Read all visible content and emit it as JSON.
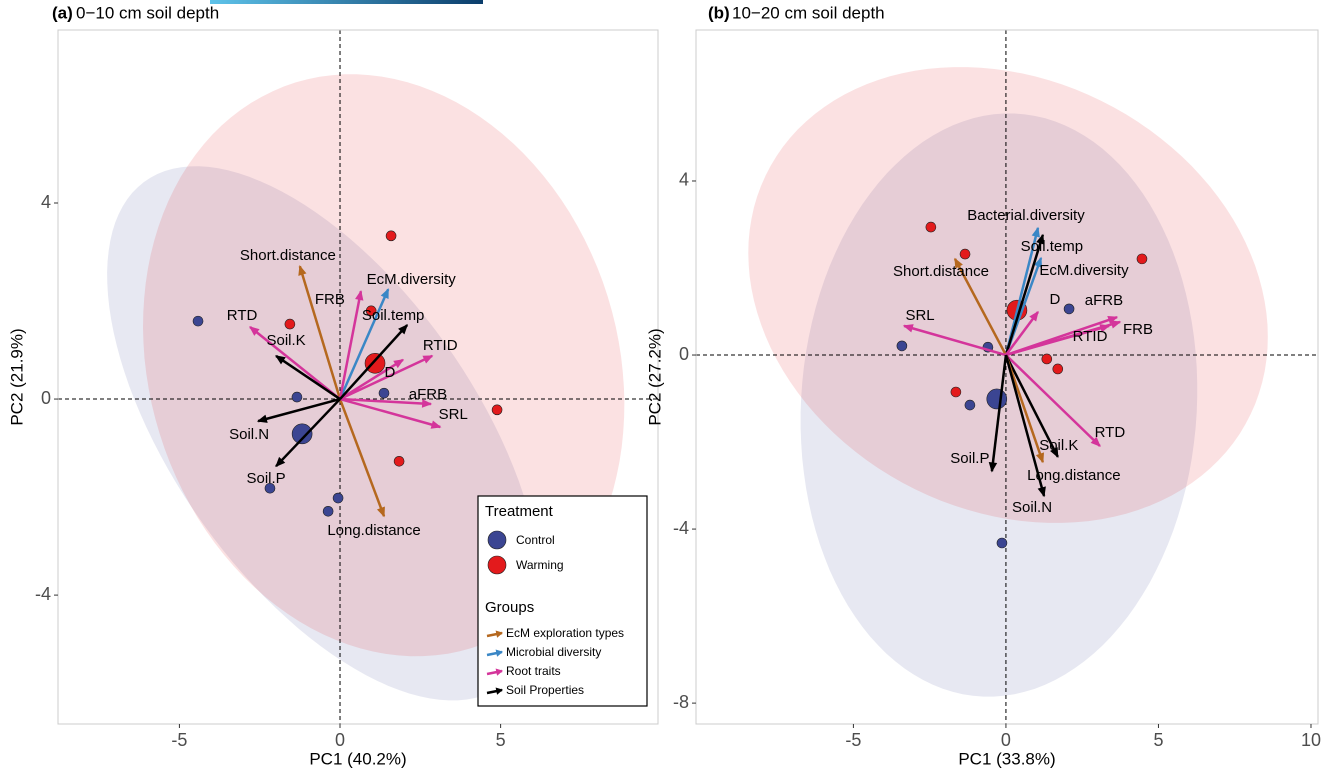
{
  "chart_data": [
    {
      "type": "biplot",
      "label": "(a)",
      "title": "0−10 cm soil depth",
      "xlabel": "PC1 (40.2%)",
      "ylabel": "PC2 (21.9%)",
      "xlim": [
        -8.78,
        9.9
      ],
      "ylim": [
        -6.63,
        7.53
      ],
      "xticks": [
        -5,
        0,
        5
      ],
      "yticks": [
        -4,
        0,
        4
      ],
      "legend_title": "Treatment",
      "groups_title": "Groups",
      "groups": [
        {
          "name": "EcM exploration types",
          "color": "#b5681f"
        },
        {
          "name": "Microbial diversity",
          "color": "#3a87c6"
        },
        {
          "name": "Root traits",
          "color": "#d4359b"
        },
        {
          "name": "Soil Properties",
          "color": "#000000"
        }
      ],
      "series": [
        {
          "name": "Control",
          "color": "#3b4592",
          "x": [
            -4.42,
            -1.34,
            -2.18,
            -0.37,
            -0.06,
            1.37
          ],
          "y": [
            1.59,
            0.04,
            -1.82,
            -2.29,
            -2.02,
            0.12
          ],
          "centroid": [
            -1.18,
            -0.71
          ],
          "ellipse": {
            "cx": -0.5,
            "cy": -0.7,
            "rx": 7.8,
            "ry": 3.8,
            "angle": -35
          }
        },
        {
          "name": "Warming",
          "color": "#e31a1c",
          "x": [
            1.59,
            -1.56,
            0.97,
            4.89,
            1.84
          ],
          "y": [
            3.33,
            1.53,
            1.8,
            -0.22,
            -1.27
          ],
          "centroid": [
            1.09,
            0.73
          ],
          "ellipse": {
            "cx": 1.36,
            "cy": 0.69,
            "rx": 7.6,
            "ry": 5.8,
            "angle": -15
          }
        }
      ],
      "arrows": [
        {
          "label": "Short.distance",
          "group": "EcM exploration types",
          "x": -1.25,
          "y": 2.71
        },
        {
          "label": "Long.distance",
          "group": "EcM exploration types",
          "x": 1.37,
          "y": -2.39
        },
        {
          "label": "EcM.diversity",
          "group": "Microbial diversity",
          "x": 1.5,
          "y": 2.24
        },
        {
          "label": "FRB",
          "group": "Root traits",
          "x": 0.65,
          "y": 2.2
        },
        {
          "label": "RTD",
          "group": "Root traits",
          "x": -2.8,
          "y": 1.47
        },
        {
          "label": "RTID",
          "group": "Root traits",
          "x": 2.87,
          "y": 0.88
        },
        {
          "label": "D",
          "group": "Root traits",
          "x": 1.96,
          "y": 0.8
        },
        {
          "label": "aFRB",
          "group": "Root traits",
          "x": 2.83,
          "y": -0.1
        },
        {
          "label": "SRL",
          "group": "Root traits",
          "x": 3.12,
          "y": -0.57
        },
        {
          "label": "Soil.temp",
          "group": "Soil Properties",
          "x": 2.09,
          "y": 1.51
        },
        {
          "label": "Soil.K",
          "group": "Soil Properties",
          "x": -1.99,
          "y": 0.88
        },
        {
          "label": "Soil.N",
          "group": "Soil Properties",
          "x": -2.55,
          "y": -0.45
        },
        {
          "label": "Soil.P",
          "group": "Soil Properties",
          "x": -1.99,
          "y": -1.37
        }
      ]
    },
    {
      "type": "biplot",
      "label": "(b)",
      "title": "10−20 cm soil depth",
      "xlabel": "PC1 (33.8%)",
      "ylabel": "PC2 (27.2%)",
      "xlim": [
        -10.16,
        10.23
      ],
      "ylim": [
        -8.48,
        7.47
      ],
      "xticks": [
        -5,
        0,
        5,
        10
      ],
      "yticks": [
        -8,
        -4,
        0,
        4
      ],
      "series": [
        {
          "name": "Control",
          "color": "#3b4592",
          "x": [
            -3.41,
            -0.59,
            -1.18,
            2.07,
            -0.13
          ],
          "y": [
            0.21,
            0.18,
            -1.15,
            1.06,
            -4.32
          ],
          "centroid": [
            -0.3,
            -1.01
          ],
          "ellipse": {
            "cx": -0.23,
            "cy": -1.15,
            "rx": 6.8,
            "ry": 6.4,
            "angle": 60
          }
        },
        {
          "name": "Warming",
          "color": "#e31a1c",
          "x": [
            -2.46,
            -1.34,
            4.46,
            1.34,
            1.7,
            -1.64
          ],
          "y": [
            2.94,
            2.32,
            2.21,
            -0.09,
            -0.32,
            -0.85
          ],
          "centroid": [
            0.36,
            1.03
          ],
          "ellipse": {
            "cx": 0.07,
            "cy": 1.38,
            "rx": 8.6,
            "ry": 5.1,
            "angle": -10
          }
        }
      ],
      "arrows": [
        {
          "label": "Bacterial.diversity",
          "group": "Microbial diversity",
          "x": 1.05,
          "y": 2.92
        },
        {
          "label": "EcM.diversity",
          "group": "Microbial diversity",
          "x": 1.15,
          "y": 2.23
        },
        {
          "label": "Soil.temp",
          "group": "Soil Properties",
          "x": 1.21,
          "y": 2.76
        },
        {
          "label": "Short.distance",
          "group": "EcM exploration types",
          "x": -1.67,
          "y": 2.21
        },
        {
          "label": "SRL",
          "group": "Root traits",
          "x": -3.34,
          "y": 0.67
        },
        {
          "label": "D",
          "group": "Root traits",
          "x": 1.05,
          "y": 0.99
        },
        {
          "label": "aFRB",
          "group": "Root traits",
          "x": 3.64,
          "y": 0.87
        },
        {
          "label": "FRB",
          "group": "Root traits",
          "x": 3.74,
          "y": 0.76
        },
        {
          "label": "RTID",
          "group": "Root traits",
          "x": 3.38,
          "y": 0.67
        },
        {
          "label": "RTD",
          "group": "Root traits",
          "x": 3.08,
          "y": -2.09
        },
        {
          "label": "Soil.K",
          "group": "Soil Properties",
          "x": 1.7,
          "y": -2.34
        },
        {
          "label": "Long.distance",
          "group": "EcM exploration types",
          "x": 1.21,
          "y": -2.46
        },
        {
          "label": "Soil.N",
          "group": "Soil Properties",
          "x": 1.25,
          "y": -3.24
        },
        {
          "label": "Soil.P",
          "group": "Soil Properties",
          "x": -0.46,
          "y": -2.67
        }
      ]
    }
  ]
}
